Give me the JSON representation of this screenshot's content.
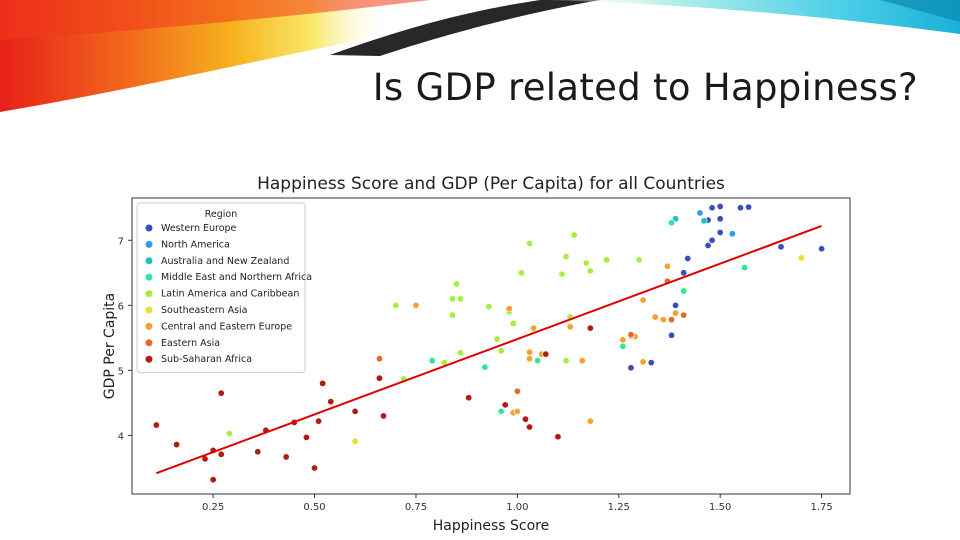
{
  "slide": {
    "title": "Is GDP related to Happiness?"
  },
  "chart_data": {
    "type": "scatter",
    "title": "Happiness Score and GDP (Per Capita) for all Countries",
    "xlabel": "Happiness Score",
    "ylabel": "GDP Per Capita",
    "xlim": [
      0.05,
      1.82
    ],
    "ylim": [
      3.1,
      7.65
    ],
    "xticks": [
      0.25,
      0.5,
      0.75,
      1.0,
      1.25,
      1.5,
      1.75
    ],
    "xtick_labels": [
      "0.25",
      "0.50",
      "0.75",
      "1.00",
      "1.25",
      "1.50",
      "1.75"
    ],
    "yticks": [
      4,
      5,
      6,
      7
    ],
    "ytick_labels": [
      "4",
      "5",
      "6",
      "7"
    ],
    "grid": false,
    "legend": {
      "title": "Region",
      "placement": "top-left"
    },
    "regression_line": {
      "x": [
        0.11,
        1.75
      ],
      "y": [
        3.42,
        7.22
      ],
      "color": "#e00000"
    },
    "series": [
      {
        "name": "Western Europe",
        "color": "#3b4cc0",
        "points": [
          [
            1.46,
            7.3
          ],
          [
            1.48,
            7.5
          ],
          [
            1.5,
            7.52
          ],
          [
            1.55,
            7.5
          ],
          [
            1.57,
            7.51
          ],
          [
            1.5,
            7.33
          ],
          [
            1.48,
            7.0
          ],
          [
            1.5,
            7.12
          ],
          [
            1.47,
            6.92
          ],
          [
            1.42,
            6.72
          ],
          [
            1.65,
            6.9
          ],
          [
            1.75,
            6.87
          ],
          [
            1.39,
            6.0
          ],
          [
            1.33,
            5.12
          ],
          [
            1.28,
            5.04
          ],
          [
            1.38,
            5.54
          ],
          [
            1.41,
            6.5
          ],
          [
            1.47,
            7.31
          ]
        ]
      },
      {
        "name": "North America",
        "color": "#3399ee",
        "points": [
          [
            1.45,
            7.42
          ],
          [
            1.53,
            7.1
          ]
        ]
      },
      {
        "name": "Australia and New Zealand",
        "color": "#20c0c8",
        "points": [
          [
            1.39,
            7.33
          ],
          [
            1.46,
            7.3
          ]
        ]
      },
      {
        "name": "Middle East and Northern Africa",
        "color": "#2de89a",
        "points": [
          [
            1.38,
            7.27
          ],
          [
            1.56,
            6.58
          ],
          [
            1.41,
            6.22
          ],
          [
            0.79,
            5.15
          ],
          [
            0.92,
            5.05
          ],
          [
            0.96,
            4.37
          ],
          [
            1.26,
            5.37
          ],
          [
            1.05,
            5.15
          ]
        ]
      },
      {
        "name": "Latin America and Caribbean",
        "color": "#a8ee40",
        "points": [
          [
            1.03,
            6.95
          ],
          [
            1.14,
            7.08
          ],
          [
            1.12,
            6.75
          ],
          [
            1.17,
            6.65
          ],
          [
            1.22,
            6.7
          ],
          [
            1.01,
            6.5
          ],
          [
            1.11,
            6.48
          ],
          [
            1.18,
            6.53
          ],
          [
            1.3,
            6.7
          ],
          [
            0.85,
            6.33
          ],
          [
            0.84,
            6.1
          ],
          [
            0.86,
            6.1
          ],
          [
            0.7,
            6.0
          ],
          [
            0.93,
            5.98
          ],
          [
            0.98,
            5.9
          ],
          [
            0.84,
            5.85
          ],
          [
            0.99,
            5.72
          ],
          [
            0.95,
            5.48
          ],
          [
            0.96,
            5.3
          ],
          [
            0.82,
            5.12
          ],
          [
            0.72,
            4.87
          ],
          [
            0.86,
            5.27
          ],
          [
            0.29,
            4.03
          ],
          [
            1.13,
            5.82
          ],
          [
            1.12,
            5.15
          ]
        ]
      },
      {
        "name": "Southeastern Asia",
        "color": "#e8e030",
        "points": [
          [
            1.7,
            6.73
          ],
          [
            1.04,
            5.63
          ],
          [
            0.6,
            3.91
          ]
        ]
      },
      {
        "name": "Central and Eastern Europe",
        "color": "#f8a030",
        "points": [
          [
            1.37,
            6.6
          ],
          [
            1.31,
            6.08
          ],
          [
            1.29,
            5.52
          ],
          [
            1.28,
            5.53
          ],
          [
            1.26,
            5.47
          ],
          [
            1.34,
            5.82
          ],
          [
            1.36,
            5.78
          ],
          [
            1.39,
            5.88
          ],
          [
            1.31,
            5.13
          ],
          [
            1.18,
            4.22
          ],
          [
            1.16,
            5.15
          ],
          [
            1.03,
            5.28
          ],
          [
            1.06,
            5.25
          ],
          [
            1.03,
            5.18
          ],
          [
            0.99,
            4.35
          ],
          [
            1.0,
            4.37
          ],
          [
            0.75,
            6.0
          ],
          [
            0.98,
            5.95
          ],
          [
            1.04,
            5.65
          ],
          [
            1.13,
            5.67
          ]
        ]
      },
      {
        "name": "Eastern Asia",
        "color": "#e86828",
        "points": [
          [
            1.37,
            6.37
          ],
          [
            1.41,
            5.85
          ],
          [
            1.38,
            5.78
          ],
          [
            1.28,
            5.55
          ],
          [
            0.66,
            5.18
          ],
          [
            1.0,
            4.68
          ]
        ]
      },
      {
        "name": "Sub-Saharan Africa",
        "color": "#b01c10",
        "points": [
          [
            0.11,
            4.16
          ],
          [
            0.16,
            3.86
          ],
          [
            0.23,
            3.64
          ],
          [
            0.25,
            3.32
          ],
          [
            0.25,
            3.77
          ],
          [
            0.27,
            3.71
          ],
          [
            0.27,
            4.65
          ],
          [
            0.36,
            3.75
          ],
          [
            0.38,
            4.08
          ],
          [
            0.43,
            3.67
          ],
          [
            0.45,
            4.2
          ],
          [
            0.48,
            3.97
          ],
          [
            0.5,
            3.5
          ],
          [
            0.51,
            4.22
          ],
          [
            0.52,
            4.8
          ],
          [
            0.54,
            4.52
          ],
          [
            0.6,
            4.37
          ],
          [
            0.66,
            4.88
          ],
          [
            0.67,
            4.3
          ],
          [
            0.88,
            4.58
          ],
          [
            0.97,
            4.47
          ],
          [
            1.02,
            4.25
          ],
          [
            1.03,
            4.13
          ],
          [
            1.1,
            3.98
          ],
          [
            1.18,
            5.65
          ],
          [
            1.07,
            5.25
          ]
        ]
      }
    ]
  }
}
